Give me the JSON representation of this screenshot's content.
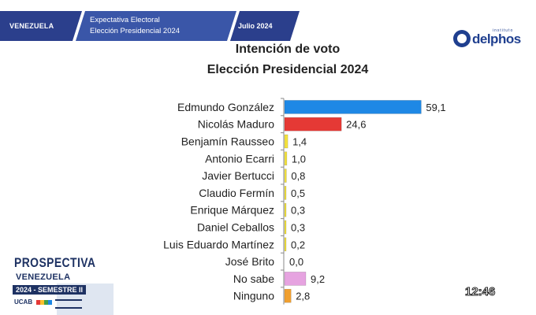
{
  "header": {
    "country": "VENEZUELA",
    "subtitle_line1": "Expectativa Electoral",
    "subtitle_line2": "Elección Presidencial 2024",
    "date": "Julio 2024",
    "bar_color": "#2b3f8c"
  },
  "logo": {
    "small_text": "instituto",
    "name": "delphos"
  },
  "chart_data": {
    "type": "bar",
    "orientation": "horizontal",
    "title": "Intención de voto",
    "subtitle": "Elección Presidencial 2024",
    "categories": [
      "Edmundo González",
      "Nicolás Maduro",
      "Benjamín Rausseo",
      "Antonio Ecarri",
      "Javier Bertucci",
      "Claudio Fermín",
      "Enrique Márquez",
      "Daniel Ceballos",
      "Luis Eduardo Martínez",
      "José Brito",
      "No sabe",
      "Ninguno"
    ],
    "values": [
      59.1,
      24.6,
      1.4,
      1.0,
      0.8,
      0.5,
      0.3,
      0.3,
      0.2,
      0.0,
      9.2,
      2.8
    ],
    "value_labels": [
      "59,1",
      "24,6",
      "1,4",
      "1,0",
      "0,8",
      "0,5",
      "0,3",
      "0,3",
      "0,2",
      "0,0",
      "9,2",
      "2,8"
    ],
    "colors": [
      "#1e88e5",
      "#e53935",
      "#f4e23c",
      "#f4e23c",
      "#f4e23c",
      "#f4e23c",
      "#f4e23c",
      "#f4e23c",
      "#f4e23c",
      "#f4e23c",
      "#e6a3e0",
      "#f0a030"
    ],
    "xlim": [
      0,
      60
    ],
    "grid": false,
    "legend": "none"
  },
  "badge": {
    "title": "PROSPECTIVA",
    "subtitle": "VENEZUELA",
    "semester": "2024 - SEMESTRE II",
    "org": "UCAB"
  },
  "timestamp": "12:46"
}
